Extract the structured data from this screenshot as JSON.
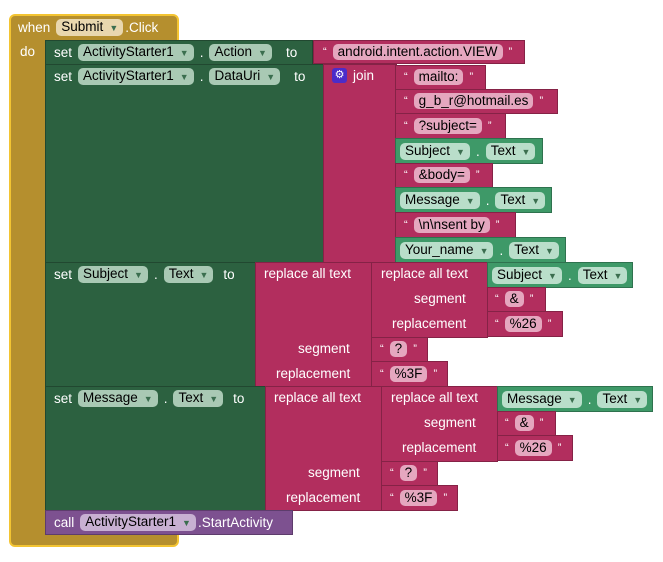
{
  "event": {
    "when": "when",
    "component": "Submit",
    "event": ".Click",
    "do": "do"
  },
  "set1": {
    "set": "set",
    "component": "ActivityStarter1",
    "property": "Action",
    "to": "to",
    "value": "android.intent.action.VIEW"
  },
  "set2": {
    "set": "set",
    "component": "ActivityStarter1",
    "property": "DataUri",
    "to": "to",
    "join": "join",
    "items": [
      "mailto:",
      "g_b_r@hotmail.es",
      "?subject=",
      "&body=",
      "\\n\\nsent by"
    ],
    "getters": [
      {
        "component": "Subject",
        "property": "Text"
      },
      {
        "component": "Message",
        "property": "Text"
      },
      {
        "component": "Your_name",
        "property": "Text"
      }
    ]
  },
  "set3": {
    "set": "set",
    "component": "Subject",
    "property": "Text",
    "to": "to",
    "replace": "replace all text",
    "segment": "segment",
    "replacement": "replacement",
    "inner_get": {
      "component": "Subject",
      "property": "Text"
    },
    "inner_segment": "&",
    "inner_replacement": "%26",
    "outer_segment": "?",
    "outer_replacement": "%3F"
  },
  "set4": {
    "set": "set",
    "component": "Message",
    "property": "Text",
    "to": "to",
    "replace": "replace all text",
    "segment": "segment",
    "replacement": "replacement",
    "inner_get": {
      "component": "Message",
      "property": "Text"
    },
    "inner_segment": "&",
    "inner_replacement": "%26",
    "outer_segment": "?",
    "outer_replacement": "%3F"
  },
  "call": {
    "call": "call",
    "component": "ActivityStarter1",
    "method": ".StartActivity"
  },
  "colors": {
    "event": "#B58F2E",
    "event_outline": "#F3C432",
    "setter": "#2C6140",
    "text": "#B22E5E",
    "getter": "#3E9968",
    "call": "#7D5190",
    "join_icon": "#4B2CC9"
  },
  "icons": {
    "dropdown": "chevron-down-icon",
    "join": "gear-icon"
  }
}
